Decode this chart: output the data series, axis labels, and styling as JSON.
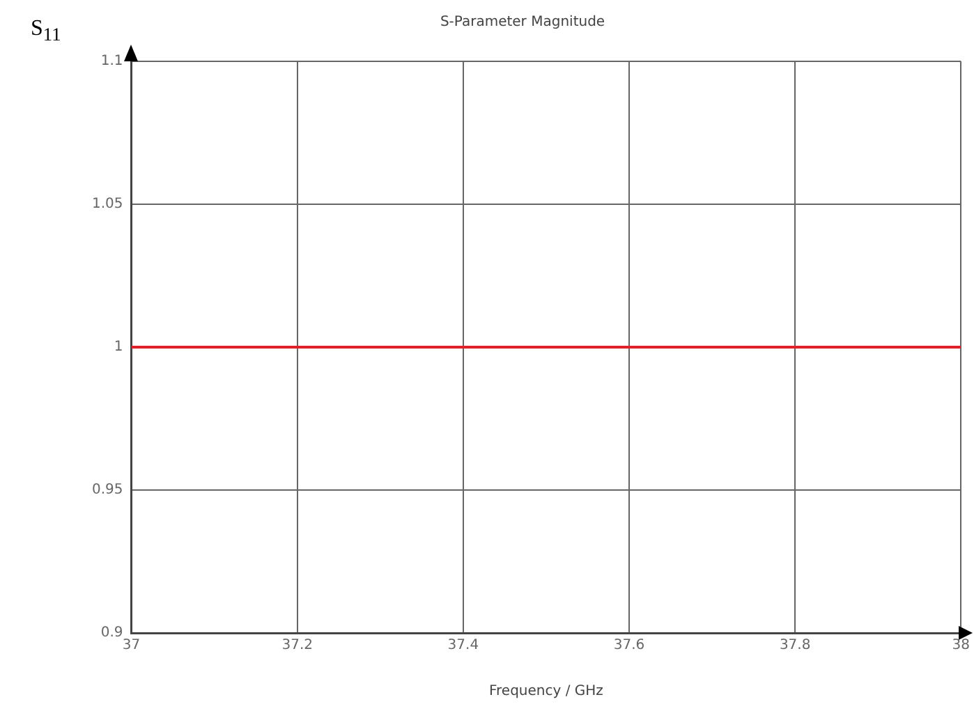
{
  "chart_data": {
    "type": "line",
    "title": "S-Parameter Magnitude",
    "xlabel": "Frequency / GHz",
    "ylabel": "S$_{11}$",
    "x": [
      37,
      38
    ],
    "series": [
      {
        "color": "#e0202a",
        "values": [
          1,
          1
        ]
      }
    ],
    "xlim": [
      37,
      38
    ],
    "xticks": [
      37,
      37.2,
      37.4,
      37.6,
      37.8,
      38
    ],
    "ylim": [
      0.9,
      1.1
    ],
    "yticks": [
      0.9,
      0.95,
      1,
      1.05,
      1.1
    ],
    "grid": true,
    "legend": false,
    "marker": "none",
    "line_style": "solid"
  }
}
